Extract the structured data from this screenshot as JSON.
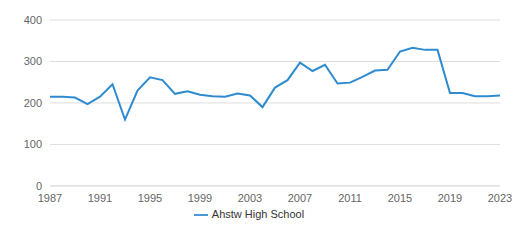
{
  "chart_data": {
    "type": "line",
    "x": [
      1987,
      1988,
      1989,
      1990,
      1991,
      1992,
      1993,
      1994,
      1995,
      1996,
      1997,
      1998,
      1999,
      2000,
      2001,
      2002,
      2003,
      2004,
      2005,
      2006,
      2007,
      2008,
      2009,
      2010,
      2011,
      2012,
      2013,
      2014,
      2015,
      2016,
      2017,
      2018,
      2019,
      2020,
      2021,
      2022,
      2023
    ],
    "series": [
      {
        "name": "Ahstw High School",
        "color": "#2e8bd0",
        "values": [
          215,
          215,
          213,
          197,
          215,
          245,
          160,
          230,
          262,
          255,
          222,
          228,
          220,
          216,
          215,
          223,
          218,
          190,
          237,
          255,
          297,
          277,
          292,
          247,
          249,
          263,
          278,
          280,
          324,
          333,
          328,
          328,
          224,
          224,
          216,
          216,
          218
        ]
      }
    ],
    "xlim": [
      1987,
      2023
    ],
    "xticks": [
      1987,
      1991,
      1995,
      1999,
      2003,
      2007,
      2011,
      2015,
      2019,
      2023
    ],
    "ylim": [
      0,
      400
    ],
    "yticks": [
      0,
      100,
      200,
      300,
      400
    ],
    "grid": true,
    "legend": "bottom"
  }
}
